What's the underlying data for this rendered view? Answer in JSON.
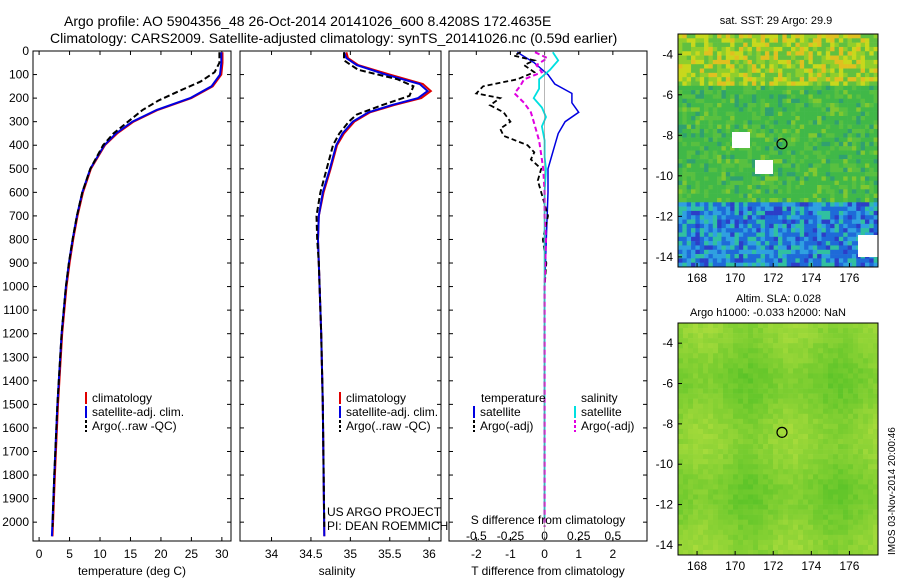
{
  "header": {
    "line1": "Argo profile: AO 5904356_48 26-Oct-2014 20141026_600 8.4208S 172.4635E",
    "line2": "Climatology: CARS2009. Satellite-adjusted climatology: synTS_20141026.nc (0.59d earlier)"
  },
  "colors": {
    "climatology": "#e00000",
    "satellite": "#0000e0",
    "argo": "#000000",
    "sat_sal": "#00e0e0",
    "argo_sal": "#e000e0"
  },
  "chart_data": [
    {
      "type": "line",
      "id": "temperature",
      "xlabel": "temperature (deg C)",
      "ylabel": "",
      "xlim": [
        -1,
        31.5
      ],
      "ylim": [
        2080,
        0
      ],
      "xticks": [
        0,
        5,
        10,
        15,
        20,
        25,
        30
      ],
      "yticks": [
        0,
        100,
        200,
        300,
        400,
        500,
        600,
        700,
        800,
        900,
        1000,
        1100,
        1200,
        1300,
        1400,
        1500,
        1600,
        1700,
        1800,
        1900,
        2000
      ],
      "legend": [
        "climatology",
        "satellite-adj. clim.",
        "Argo(..raw -QC)"
      ],
      "series": [
        {
          "name": "climatology",
          "depth": [
            5,
            50,
            100,
            150,
            200,
            250,
            300,
            350,
            400,
            500,
            600,
            700,
            800,
            900,
            1000,
            1200,
            1500,
            1800,
            2060
          ],
          "values": [
            30.1,
            30.1,
            29.9,
            28.5,
            25,
            19.5,
            15.5,
            12.8,
            10.8,
            8.5,
            7.2,
            6.3,
            5.6,
            5,
            4.5,
            3.8,
            3.1,
            2.6,
            2.2
          ]
        },
        {
          "name": "satellite-adj. clim.",
          "depth": [
            5,
            50,
            100,
            150,
            200,
            250,
            300,
            350,
            400,
            500,
            600,
            700,
            800,
            900,
            1000,
            1200,
            1500,
            1800,
            2060
          ],
          "values": [
            29.9,
            29.9,
            29.7,
            28.3,
            24.8,
            19.3,
            15.3,
            12.6,
            10.7,
            8.4,
            7.1,
            6.2,
            5.5,
            4.9,
            4.4,
            3.7,
            3,
            2.5,
            2.1
          ]
        },
        {
          "name": "Argo(..raw -QC)",
          "depth": [
            5,
            50,
            90,
            130,
            170,
            210,
            250,
            300,
            350,
            400,
            500,
            600,
            700,
            800,
            900,
            1000,
            1200,
            1500,
            1800,
            2020
          ],
          "values": [
            29.6,
            29.6,
            28.8,
            26.5,
            23,
            19.6,
            17,
            14.6,
            12.2,
            10.5,
            8.4,
            7.1,
            6.2,
            5.5,
            4.9,
            4.4,
            3.7,
            3,
            2.5,
            2.2
          ]
        }
      ]
    },
    {
      "type": "line",
      "id": "salinity",
      "xlabel": "salinity",
      "ylabel": "",
      "xlim": [
        33.6,
        36.15
      ],
      "ylim": [
        2080,
        0
      ],
      "xticks": [
        34,
        34.5,
        35,
        35.5,
        36
      ],
      "legend": [
        "climatology",
        "satellite-adj. clim.",
        "Argo(..raw -QC)"
      ],
      "series": [
        {
          "name": "climatology",
          "depth": [
            5,
            30,
            60,
            100,
            140,
            170,
            200,
            230,
            260,
            300,
            350,
            400,
            500,
            600,
            700,
            800,
            900,
            1000,
            1200,
            1500,
            2060
          ],
          "values": [
            34.95,
            34.97,
            35.1,
            35.5,
            35.92,
            36.02,
            35.9,
            35.55,
            35.25,
            35.05,
            34.92,
            34.83,
            34.75,
            34.66,
            34.6,
            34.59,
            34.6,
            34.61,
            34.63,
            34.65,
            34.67
          ]
        },
        {
          "name": "satellite-adj. clim.",
          "depth": [
            5,
            30,
            60,
            100,
            140,
            170,
            200,
            230,
            260,
            300,
            350,
            400,
            500,
            600,
            700,
            800,
            900,
            1000,
            1200,
            1500,
            2060
          ],
          "values": [
            34.92,
            34.95,
            35.08,
            35.45,
            35.88,
            35.98,
            35.86,
            35.52,
            35.23,
            35.03,
            34.9,
            34.82,
            34.74,
            34.65,
            34.6,
            34.59,
            34.6,
            34.61,
            34.63,
            34.65,
            34.67
          ]
        },
        {
          "name": "Argo(..raw -QC)",
          "depth": [
            5,
            40,
            80,
            120,
            150,
            190,
            230,
            270,
            300,
            350,
            400,
            500,
            600,
            700,
            800,
            900,
            1000,
            1200,
            1500,
            2020
          ],
          "values": [
            34.92,
            34.92,
            35.1,
            35.6,
            35.8,
            35.75,
            35.4,
            35.08,
            34.98,
            34.86,
            34.78,
            34.7,
            34.62,
            34.57,
            34.58,
            34.6,
            34.61,
            34.63,
            34.65,
            34.67
          ]
        }
      ]
    },
    {
      "type": "line",
      "id": "difference",
      "xlabel": "T difference from climatology",
      "xlabel_top": "S difference from climatology",
      "xlim": [
        -2.8,
        3
      ],
      "ylim": [
        2080,
        0
      ],
      "xticks": [
        -2,
        -1,
        0,
        1,
        2
      ],
      "xticks_top": [
        "-0.5",
        "-0.25",
        "0",
        "0.25",
        "0.5"
      ],
      "legend_titles": [
        "temperature",
        "salinity"
      ],
      "legend": [
        "satellite",
        "Argo(-adj)",
        "satellite",
        "Argo(-adj)"
      ],
      "series": [
        {
          "name": "temperature satellite",
          "depth": [
            5,
            50,
            100,
            140,
            180,
            220,
            260,
            300,
            350,
            400,
            450,
            500,
            600,
            800,
            1000,
            2000
          ],
          "values": [
            -0.8,
            -0.3,
            0.1,
            0.3,
            0.8,
            0.8,
            1,
            0.6,
            0.4,
            0.3,
            0.2,
            0.1,
            0.1,
            0.05,
            0,
            0
          ]
        },
        {
          "name": "temperature Argo(-adj)",
          "depth": [
            5,
            20,
            40,
            60,
            90,
            120,
            150,
            180,
            200,
            230,
            260,
            300,
            330,
            360,
            400,
            430,
            460,
            500,
            550,
            600,
            700,
            800,
            900,
            1000,
            1200,
            1500,
            2020
          ],
          "values": [
            -0.7,
            -0.9,
            -0.3,
            -0.6,
            -0.3,
            -0.8,
            -1.8,
            -2.0,
            -1.3,
            -1.6,
            -1.2,
            -1.0,
            -1.3,
            -1.2,
            -0.5,
            -0.3,
            -0.4,
            -0.1,
            -0.2,
            -0.1,
            0.1,
            -0.05,
            0.05,
            0,
            0,
            0,
            0
          ]
        },
        {
          "name": "salinity satellite",
          "depth": [
            5,
            40,
            80,
            120,
            160,
            200,
            240,
            280,
            320,
            380,
            450,
            500,
            600,
            800,
            1000,
            2000
          ],
          "values": [
            0.06,
            0.1,
            0.04,
            -0.04,
            -0.04,
            -0.08,
            -0.02,
            0.01,
            -0.02,
            0,
            0,
            0.01,
            0,
            0,
            0,
            0
          ]
        },
        {
          "name": "salinity Argo(-adj)",
          "depth": [
            5,
            30,
            60,
            90,
            120,
            150,
            180,
            220,
            260,
            300,
            340,
            380,
            420,
            460,
            500,
            600,
            700,
            800,
            1000,
            1500,
            2020
          ],
          "values": [
            -0.07,
            0.02,
            -0.06,
            -0.02,
            -0.15,
            -0.18,
            -0.22,
            -0.15,
            -0.1,
            -0.08,
            -0.06,
            -0.04,
            -0.03,
            -0.02,
            -0.01,
            0,
            0,
            0.01,
            0,
            0,
            0
          ]
        }
      ]
    },
    {
      "type": "heatmap",
      "id": "sst_map",
      "title": "sat. SST: 29 Argo: 29.9",
      "xlim": [
        167,
        177.5
      ],
      "ylim": [
        -14.5,
        -3
      ],
      "xticks": [
        168,
        170,
        172,
        174,
        176
      ],
      "yticks": [
        -4,
        -6,
        -8,
        -10,
        -12,
        -14
      ],
      "marker": {
        "lon": 172.46,
        "lat": -8.42
      }
    },
    {
      "type": "heatmap",
      "id": "sla_map",
      "title": "Altim. SLA: 0.028",
      "subtitle": "Argo h1000: -0.033 h2000: NaN",
      "xlim": [
        167,
        177.5
      ],
      "ylim": [
        -14.5,
        -3
      ],
      "xticks": [
        168,
        170,
        172,
        174,
        176
      ],
      "yticks": [
        -4,
        -6,
        -8,
        -10,
        -12,
        -14
      ],
      "marker": {
        "lon": 172.46,
        "lat": -8.42
      }
    }
  ],
  "annotations": {
    "project": "US ARGO PROJECT",
    "pi": "PI: DEAN ROEMMICH",
    "timestamp": "IMOS 03-Nov-2014 20:00:46"
  }
}
